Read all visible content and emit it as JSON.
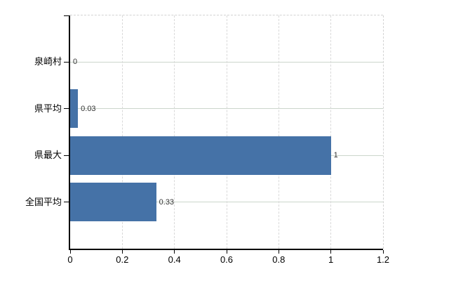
{
  "chart_data": {
    "type": "bar",
    "orientation": "horizontal",
    "title": "",
    "xlabel": "",
    "ylabel": "",
    "categories": [
      "泉崎村",
      "県平均",
      "県最大",
      "全国平均"
    ],
    "values": [
      0,
      0.03,
      1,
      0.33
    ],
    "value_labels": [
      "0",
      "0.03",
      "1",
      "0.33"
    ],
    "xlim": [
      0,
      1.2
    ],
    "x_ticks": [
      0,
      0.2,
      0.4,
      0.6,
      0.8,
      1,
      1.2
    ],
    "x_tick_labels": [
      "0",
      "0.2",
      "0.4",
      "0.6",
      "0.8",
      "1",
      "1.2"
    ],
    "grid": true,
    "legend": false,
    "colors": {
      "bar": "#4572a7",
      "axis": "#000000",
      "h_gridline": "#ccd6cc",
      "v_gridline": "#d9d9d9",
      "plot_border_dashed": "#d3d3d3",
      "value_text": "#333333",
      "tick_text": "#000000",
      "background": "#ffffff"
    }
  }
}
